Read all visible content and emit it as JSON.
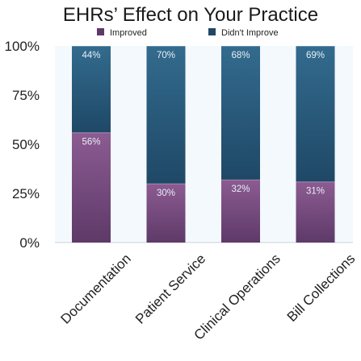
{
  "chart_data": {
    "type": "bar",
    "stacked": true,
    "title": "EHRs’ Effect on Your Practice",
    "categories": [
      "Documentation",
      "Patient Service",
      "Clinical Operations",
      "Bill Collections"
    ],
    "series": [
      {
        "name": "Improved",
        "values": [
          56,
          30,
          32,
          31
        ],
        "labels": [
          "56%",
          "30%",
          "32%",
          "31%"
        ],
        "color_top": "#8c5b92",
        "color_bottom": "#5e3a68"
      },
      {
        "name": "Didn't Improve",
        "values": [
          44,
          70,
          68,
          69
        ],
        "labels": [
          "44%",
          "70%",
          "68%",
          "69%"
        ],
        "color_top": "#336b8e",
        "color_bottom": "#1f4866"
      }
    ],
    "y_ticks": [
      "0%",
      "25%",
      "50%",
      "75%",
      "100%"
    ],
    "ylim": [
      0,
      100
    ],
    "legend": "top",
    "plot_background": "#f3f9fc"
  }
}
